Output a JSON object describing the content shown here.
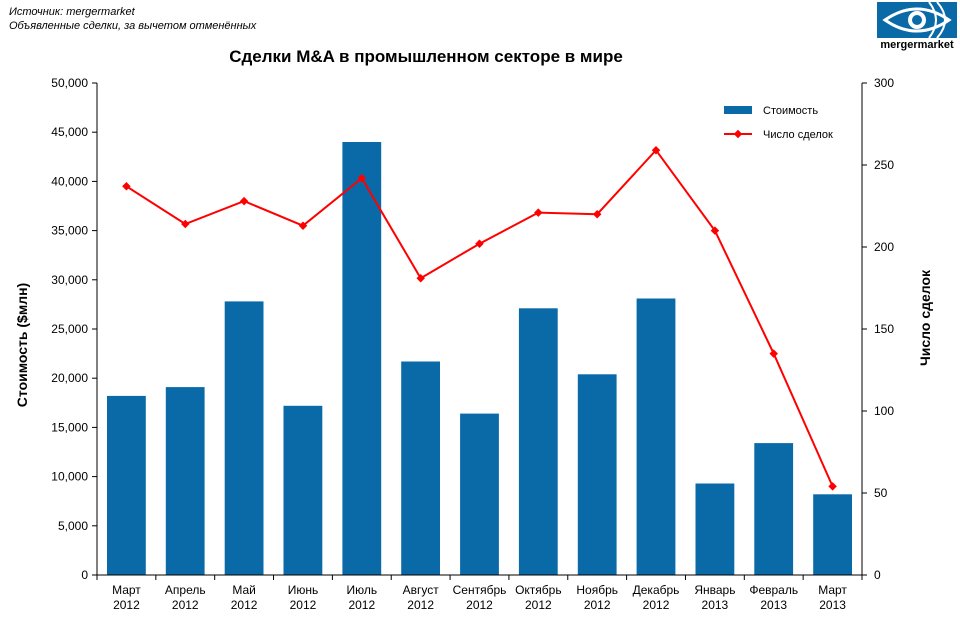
{
  "header": {
    "source": "Источник: mergermarket",
    "note": "Объявленные сделки, за вычетом отменённых"
  },
  "logo": {
    "text": "mergermarket",
    "brand_color": "#0a6aa8",
    "icon": "eye-logo-icon"
  },
  "chart_data": {
    "type": "bar",
    "title": "Сделки M&A в промышленном секторе в мире",
    "categories": [
      [
        "Март",
        "2012"
      ],
      [
        "Апрель",
        "2012"
      ],
      [
        "Май",
        "2012"
      ],
      [
        "Июнь",
        "2012"
      ],
      [
        "Июль",
        "2012"
      ],
      [
        "Август",
        "2012"
      ],
      [
        "Сентябрь",
        "2012"
      ],
      [
        "Октябрь",
        "2012"
      ],
      [
        "Ноябрь",
        "2012"
      ],
      [
        "Декабрь",
        "2012"
      ],
      [
        "Январь",
        "2013"
      ],
      [
        "Февраль",
        "2013"
      ],
      [
        "Март",
        "2013"
      ]
    ],
    "series": [
      {
        "name": "Стоимость",
        "type": "bar",
        "axis": "left",
        "color": "#0a6aa8",
        "values": [
          18200,
          19100,
          27800,
          17200,
          44000,
          21700,
          16400,
          27100,
          20400,
          28100,
          9300,
          13400,
          8200
        ]
      },
      {
        "name": "Число сделок",
        "type": "line",
        "axis": "right",
        "color": "#ff0000",
        "values": [
          237,
          214,
          228,
          213,
          242,
          181,
          202,
          221,
          220,
          259,
          210,
          135,
          54
        ]
      }
    ],
    "ylabel": "Стоимость ($млн)",
    "y2label": "Число сделок",
    "ylim": [
      0,
      50000
    ],
    "y2lim": [
      0,
      300
    ],
    "yticks": [
      "0",
      "5,000",
      "10,000",
      "15,000",
      "20,000",
      "25,000",
      "30,000",
      "35,000",
      "40,000",
      "45,000",
      "50,000"
    ],
    "y2ticks": [
      "0",
      "50",
      "100",
      "150",
      "200",
      "250",
      "300"
    ],
    "grid": false,
    "legend": "top-right"
  }
}
